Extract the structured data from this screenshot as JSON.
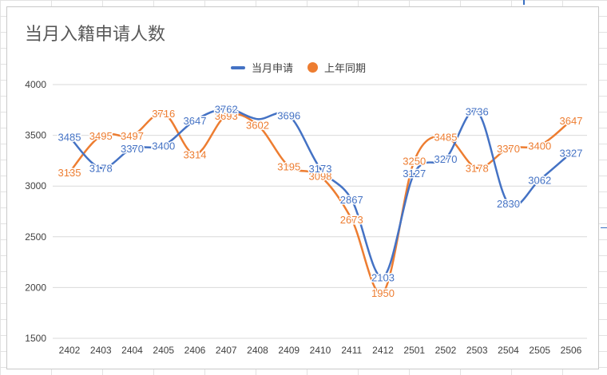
{
  "chart_data": {
    "type": "line",
    "title": "当月入籍申请人数",
    "categories": [
      "2402",
      "2403",
      "2404",
      "2405",
      "2406",
      "2407",
      "2408",
      "2409",
      "2410",
      "2411",
      "2412",
      "2501",
      "2502",
      "2503",
      "2504",
      "2505",
      "2506"
    ],
    "series": [
      {
        "name": "当月申请",
        "color": "#4472c4",
        "values": [
          3485,
          3178,
          3370,
          3400,
          3647,
          3762,
          3660,
          3696,
          3173,
          2867,
          2103,
          3127,
          3270,
          3736,
          2830,
          3062,
          3327
        ],
        "labels": [
          "3485",
          "3178",
          "3370",
          "3400",
          "3647",
          "3762",
          "",
          "3696",
          "3173",
          "2867",
          "2103",
          "3127",
          "3270",
          "3736",
          "2830",
          "3062",
          "3327"
        ]
      },
      {
        "name": "上年同期",
        "color": "#ed7d31",
        "values": [
          3135,
          3495,
          3497,
          3716,
          3314,
          3693,
          3602,
          3195,
          3098,
          2673,
          1950,
          3250,
          3485,
          3178,
          3370,
          3400,
          3647
        ],
        "labels": [
          "3135",
          "3495",
          "3497",
          "3716",
          "3314",
          "3693",
          "3602",
          "3195",
          "3098",
          "2673",
          "1950",
          "3250",
          "3485",
          "3178",
          "3370",
          "3400",
          "3647"
        ]
      }
    ],
    "yticks": [
      "4000",
      "3500",
      "3000",
      "2500",
      "2000",
      "1500"
    ],
    "ylim": [
      1500,
      4000
    ],
    "grid": true,
    "legend_position": "top-center",
    "smooth": true
  }
}
